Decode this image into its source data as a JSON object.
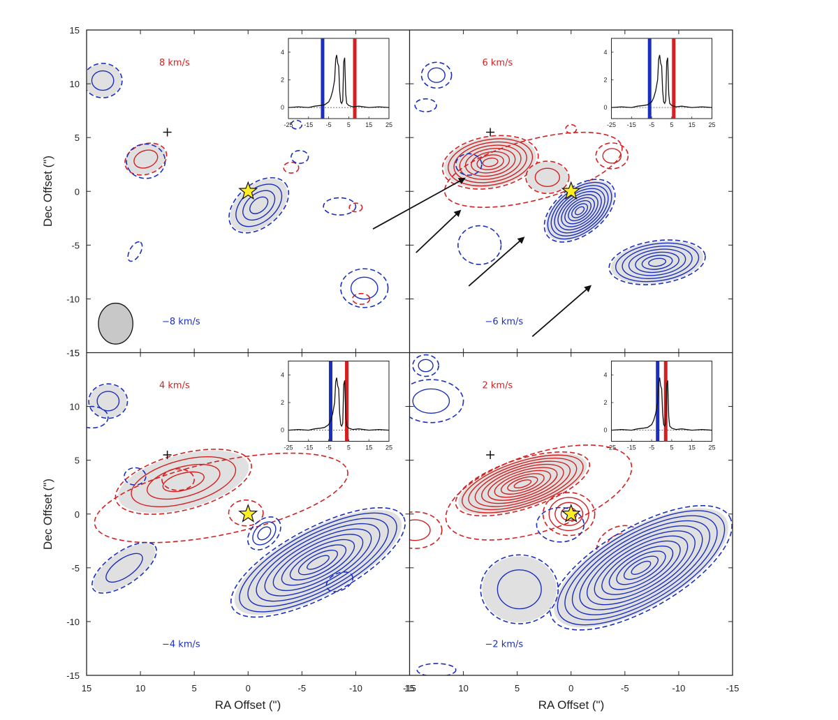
{
  "chart_data": {
    "type": "contour",
    "layout": "2x2 shared axes",
    "xlabel": "RA Offset (\")",
    "ylabel": "Dec Offset (\")",
    "xlim": [
      15,
      -15
    ],
    "ylim": [
      -15,
      15
    ],
    "xticks": [
      "15",
      "10",
      "5",
      "0",
      "-5",
      "-10",
      "-15"
    ],
    "yticks": [
      "15",
      "10",
      "5",
      "0",
      "-5",
      "-10",
      "-15"
    ],
    "colors": {
      "red": "#d42020",
      "blue": "#1a2fc0",
      "fill": "#e0e0e0",
      "star": "#ffee22",
      "beam": "#c8c8c8"
    },
    "star_position": [
      0,
      0
    ],
    "cross_position": [
      7.5,
      5.5
    ],
    "inset": {
      "xlim": [
        -25,
        25
      ],
      "ylim": [
        -0.8,
        5
      ],
      "xticks": [
        "-25",
        "-15",
        "-5",
        "5",
        "15",
        "25"
      ],
      "yticks": [
        "0",
        "2",
        "4"
      ],
      "spectrum_v": [
        -25,
        -20,
        -15,
        -12,
        -9,
        -7,
        -5,
        -4,
        -3,
        -2,
        -1.5,
        -1,
        -0.5,
        0,
        0.5,
        1,
        1.5,
        2,
        2.5,
        3,
        3.5,
        4,
        5,
        7,
        10,
        15,
        20,
        25
      ],
      "spectrum_t": [
        0,
        0.05,
        0,
        0.1,
        0.15,
        0.2,
        0.4,
        0.7,
        1.2,
        2.0,
        3.5,
        3.8,
        3.2,
        3.0,
        1.2,
        0.4,
        0.3,
        0.5,
        3.3,
        3.6,
        1.0,
        0.3,
        0.15,
        0.05,
        0.1,
        0,
        0.05,
        0
      ]
    },
    "panels": [
      {
        "red_label": "8 km/s",
        "blue_label": "-8 km/s",
        "red_v": 8,
        "blue_v": -8,
        "beam": true,
        "arrows": false,
        "red": [
          {
            "x": 13.5,
            "y": 10.2,
            "sx": 1.3,
            "sy": 1.2,
            "ang": 0,
            "n": 1,
            "fill": false
          },
          {
            "x": 9.5,
            "y": 3.0,
            "sx": 2.0,
            "sy": 1.4,
            "ang": -20,
            "n": 1,
            "fill": true
          },
          {
            "x": -4,
            "y": 2.2,
            "sx": 0.7,
            "sy": 0.5,
            "ang": 0,
            "n": 0,
            "fill": false
          },
          {
            "x": -10,
            "y": -1.5,
            "sx": 0.6,
            "sy": 0.4,
            "ang": 0,
            "n": 0,
            "fill": false
          },
          {
            "x": -10.5,
            "y": -10.0,
            "sx": 0.8,
            "sy": 0.5,
            "ang": 0,
            "n": 0,
            "fill": false
          }
        ],
        "blue": [
          {
            "x": 13.5,
            "y": 10.3,
            "sx": 1.8,
            "sy": 1.6,
            "ang": 0,
            "n": 1,
            "fill": true
          },
          {
            "x": 9.5,
            "y": 2.8,
            "sx": 1.8,
            "sy": 1.6,
            "ang": 0,
            "n": 0,
            "fill": false
          },
          {
            "x": -1.0,
            "y": -1.3,
            "sx": 3.2,
            "sy": 2.0,
            "ang": -40,
            "n": 3,
            "fill": true
          },
          {
            "x": -8.5,
            "y": -1.4,
            "sx": 1.5,
            "sy": 0.8,
            "ang": 0,
            "n": 0,
            "fill": false
          },
          {
            "x": 10.5,
            "y": -5.6,
            "sx": 1.0,
            "sy": 0.5,
            "ang": -60,
            "n": 0,
            "fill": false
          },
          {
            "x": -10.8,
            "y": -9.0,
            "sx": 2.2,
            "sy": 1.8,
            "ang": 0,
            "n": 1,
            "fill": false
          },
          {
            "x": -4.5,
            "y": 6.2,
            "sx": 0.5,
            "sy": 0.4,
            "ang": 0,
            "n": 0,
            "fill": false
          },
          {
            "x": -4.8,
            "y": 3.2,
            "sx": 0.8,
            "sy": 0.6,
            "ang": 0,
            "n": 0,
            "fill": false
          }
        ]
      },
      {
        "red_label": "6 km/s",
        "blue_label": "-6 km/s",
        "red_v": 6,
        "blue_v": -6,
        "beam": false,
        "arrows": true,
        "red": [
          {
            "x": 7.5,
            "y": 2.7,
            "sx": 4.5,
            "sy": 2.4,
            "ang": -10,
            "n": 7,
            "fill": true
          },
          {
            "x": 2.2,
            "y": 1.3,
            "sx": 2.0,
            "sy": 1.5,
            "ang": 0,
            "n": 1,
            "fill": true
          },
          {
            "x": 3.5,
            "y": 2.0,
            "sx": 8.5,
            "sy": 2.8,
            "ang": -15,
            "n": 0,
            "fill": false
          },
          {
            "x": -3.8,
            "y": 3.3,
            "sx": 1.5,
            "sy": 1.2,
            "ang": 0,
            "n": 1,
            "fill": false
          },
          {
            "x": 0,
            "y": 5.8,
            "sx": 0.5,
            "sy": 0.4,
            "ang": 0,
            "n": 0,
            "fill": false
          }
        ],
        "blue": [
          {
            "x": -0.8,
            "y": -1.8,
            "sx": 3.8,
            "sy": 2.2,
            "ang": -38,
            "n": 9,
            "fill": true
          },
          {
            "x": -8.0,
            "y": -6.6,
            "sx": 4.5,
            "sy": 2.0,
            "ang": -8,
            "n": 6,
            "fill": true
          },
          {
            "x": 12.5,
            "y": 10.8,
            "sx": 1.4,
            "sy": 1.2,
            "ang": 0,
            "n": 1,
            "fill": false
          },
          {
            "x": 9.5,
            "y": 2.5,
            "sx": 1.2,
            "sy": 1.0,
            "ang": 0,
            "n": 0,
            "fill": false
          },
          {
            "x": 8.5,
            "y": -5.0,
            "sx": 2.0,
            "sy": 1.8,
            "ang": 0,
            "n": 0,
            "fill": false
          },
          {
            "x": 13.5,
            "y": 8.0,
            "sx": 1.0,
            "sy": 0.6,
            "ang": 0,
            "n": 0,
            "fill": false
          }
        ]
      },
      {
        "red_label": "4 km/s",
        "blue_label": "-4 km/s",
        "red_v": 4,
        "blue_v": -4,
        "beam": false,
        "arrows": false,
        "red": [
          {
            "x": 6.0,
            "y": 3.0,
            "sx": 6.5,
            "sy": 2.6,
            "ang": -15,
            "n": 3,
            "fill": true
          },
          {
            "x": 6.5,
            "y": 3.2,
            "sx": 1.5,
            "sy": 1.0,
            "ang": 0,
            "n": 0,
            "fill": false
          },
          {
            "x": 0.2,
            "y": 0.1,
            "sx": 1.6,
            "sy": 1.2,
            "ang": 0,
            "n": 0,
            "fill": false
          },
          {
            "x": -9.0,
            "y": -0.8,
            "sx": 1.0,
            "sy": 0.5,
            "ang": 0,
            "n": 0,
            "fill": false
          },
          {
            "x": 2.5,
            "y": 1.5,
            "sx": 12.0,
            "sy": 3.4,
            "ang": -12,
            "n": 0,
            "fill": false
          }
        ],
        "blue": [
          {
            "x": -6.5,
            "y": -4.5,
            "sx": 9.0,
            "sy": 3.2,
            "ang": -28,
            "n": 9,
            "fill": true
          },
          {
            "x": -8.5,
            "y": -6.3,
            "sx": 1.3,
            "sy": 0.8,
            "ang": -25,
            "n": 0,
            "fill": false
          },
          {
            "x": -1.5,
            "y": -1.8,
            "sx": 1.8,
            "sy": 1.2,
            "ang": -45,
            "n": 2,
            "fill": false
          },
          {
            "x": 11.5,
            "y": -5.0,
            "sx": 3.5,
            "sy": 1.5,
            "ang": -35,
            "n": 1,
            "fill": true
          },
          {
            "x": 13.0,
            "y": 10.5,
            "sx": 1.8,
            "sy": 1.6,
            "ang": 0,
            "n": 1,
            "fill": true
          },
          {
            "x": 14.5,
            "y": 9.0,
            "sx": 1.5,
            "sy": 1.0,
            "ang": 0,
            "n": 0,
            "fill": false
          },
          {
            "x": 10.5,
            "y": 3.5,
            "sx": 1.0,
            "sy": 0.8,
            "ang": 0,
            "n": 0,
            "fill": false
          }
        ]
      },
      {
        "red_label": "2 km/s",
        "blue_label": "-2 km/s",
        "red_v": 2,
        "blue_v": -2,
        "beam": false,
        "arrows": false,
        "red": [
          {
            "x": 4.5,
            "y": 2.8,
            "sx": 6.5,
            "sy": 2.3,
            "ang": -18,
            "n": 9,
            "fill": true
          },
          {
            "x": 3.0,
            "y": 2.0,
            "sx": 9.0,
            "sy": 3.6,
            "ang": -18,
            "n": 0,
            "fill": false
          },
          {
            "x": 0.2,
            "y": 0,
            "sx": 2.4,
            "sy": 2.0,
            "ang": 0,
            "n": 3,
            "fill": false
          },
          {
            "x": -4.5,
            "y": -2.8,
            "sx": 2.2,
            "sy": 1.6,
            "ang": -25,
            "n": 1,
            "fill": false
          },
          {
            "x": 14.5,
            "y": -1.5,
            "sx": 2.5,
            "sy": 1.7,
            "ang": 0,
            "n": 1,
            "fill": false
          }
        ],
        "blue": [
          {
            "x": -6.5,
            "y": -5.0,
            "sx": 9.5,
            "sy": 3.8,
            "ang": -30,
            "n": 11,
            "fill": true
          },
          {
            "x": 4.8,
            "y": -7.0,
            "sx": 3.6,
            "sy": 3.2,
            "ang": 0,
            "n": 1,
            "fill": true
          },
          {
            "x": 1.0,
            "y": -1.0,
            "sx": 2.2,
            "sy": 1.6,
            "ang": 0,
            "n": 0,
            "fill": false
          },
          {
            "x": 13.0,
            "y": 10.5,
            "sx": 3.0,
            "sy": 2.0,
            "ang": 0,
            "n": 1,
            "fill": false
          },
          {
            "x": 13.5,
            "y": 13.8,
            "sx": 1.2,
            "sy": 1.0,
            "ang": 0,
            "n": 1,
            "fill": false
          },
          {
            "x": 12.5,
            "y": -14.5,
            "sx": 1.8,
            "sy": 0.6,
            "ang": 0,
            "n": 0,
            "fill": false
          }
        ]
      }
    ]
  }
}
